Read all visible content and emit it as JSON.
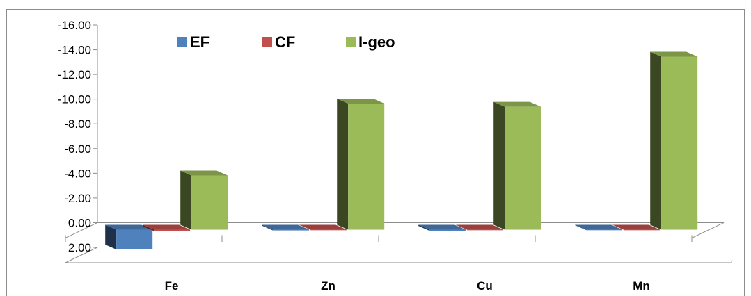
{
  "chart_data": {
    "type": "bar",
    "title": "",
    "xlabel": "",
    "ylabel": "",
    "categories": [
      "Fe",
      "Zn",
      "Cu",
      "Mn"
    ],
    "series": [
      {
        "name": "EF",
        "values": [
          1.6,
          0.06,
          0.09,
          0.03
        ],
        "color": "#4f81bd"
      },
      {
        "name": "CF",
        "values": [
          0.1,
          0.01,
          0.01,
          0.01
        ],
        "color": "#c0504d"
      },
      {
        "name": "I-geo",
        "values": [
          -4.39,
          -10.21,
          -9.95,
          -14.01
        ],
        "color": "#9bbb59"
      }
    ],
    "ylim": [
      2.0,
      -16.0
    ],
    "yticks": [
      "-16.00",
      "-14.00",
      "-12.00",
      "-10.00",
      "-8.00",
      "-6.00",
      "-4.00",
      "-2.00",
      "0.00",
      "2.00"
    ],
    "axis_direction": "reversed (negative values up)",
    "legend_position": "top-left",
    "grid": false,
    "style": "3d-column"
  }
}
